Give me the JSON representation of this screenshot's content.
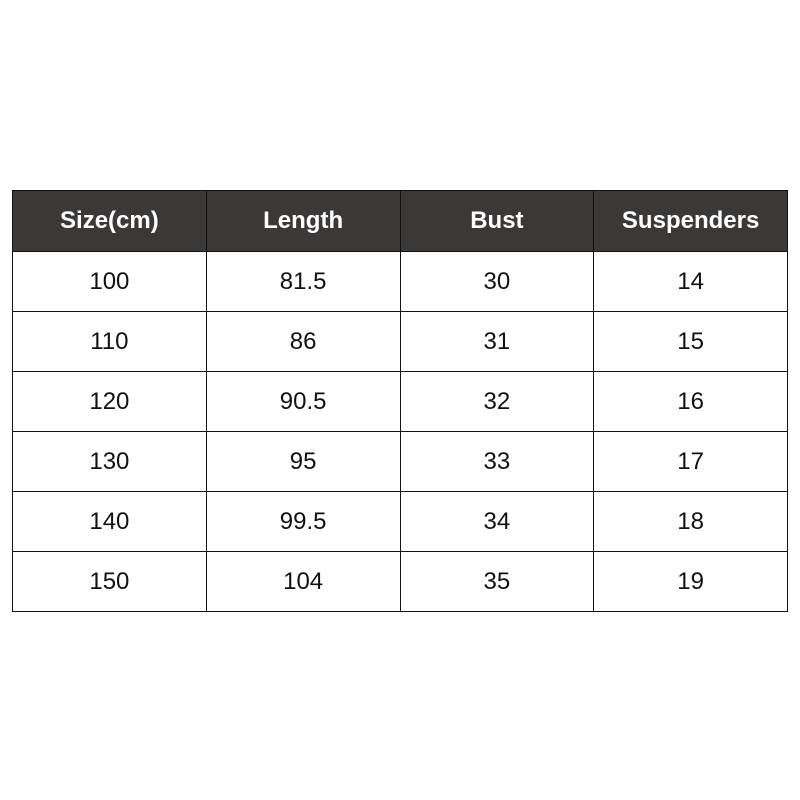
{
  "table": {
    "headers": [
      "Size(cm)",
      "Length",
      "Bust",
      "Suspenders"
    ],
    "rows": [
      [
        "100",
        "81.5",
        "30",
        "14"
      ],
      [
        "110",
        "86",
        "31",
        "15"
      ],
      [
        "120",
        "90.5",
        "32",
        "16"
      ],
      [
        "130",
        "95",
        "33",
        "17"
      ],
      [
        "140",
        "99.5",
        "34",
        "18"
      ],
      [
        "150",
        "104",
        "35",
        "19"
      ]
    ],
    "header_bg": "#3b3838",
    "header_fg": "#ffffff"
  }
}
